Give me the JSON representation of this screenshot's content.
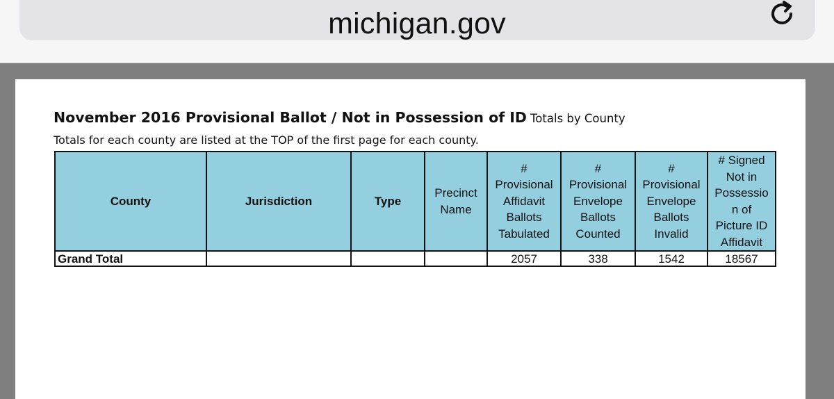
{
  "browser": {
    "url": "michigan.gov",
    "reload_icon": "reload-icon"
  },
  "document": {
    "title": "November 2016 Provisional Ballot / Not in Possession of ID",
    "title_suffix": "Totals by County",
    "subtitle": "Totals for each county are listed at the TOP of the first page for each county."
  },
  "table": {
    "headers": [
      "County",
      "Jurisdiction",
      "Type",
      "Precinct\nName",
      "#\nProvisional\nAffidavit\nBallots\nTabulated",
      "#\nProvisional\nEnvelope\nBallots\nCounted",
      "#\nProvisional\nEnvelope\nBallots\nInvalid",
      "# Signed\nNot in\nPossessio\nn of\nPicture ID\nAffidavit"
    ],
    "rows": [
      [
        "Grand Total",
        "",
        "",
        "",
        "2057",
        "338",
        "1542",
        "18567"
      ]
    ]
  }
}
